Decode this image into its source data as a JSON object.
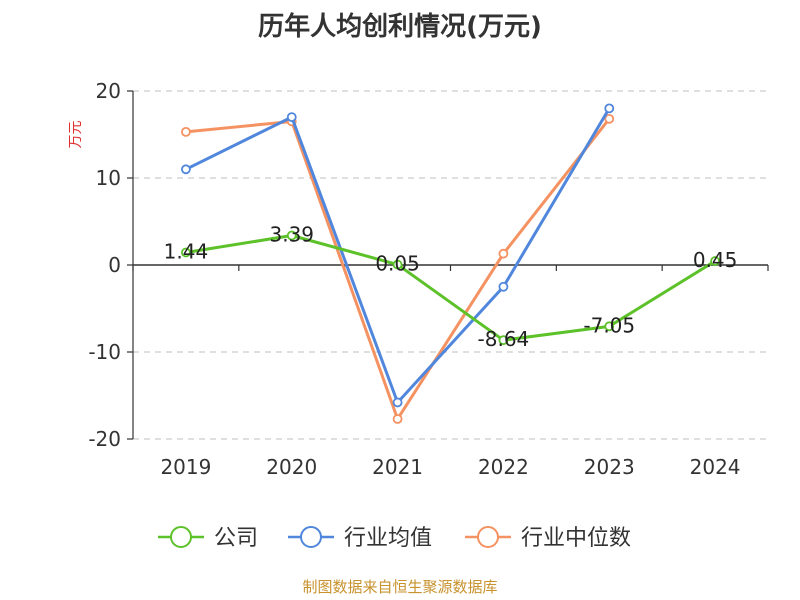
{
  "chart_data": {
    "type": "line",
    "title": "历年人均创利情况(万元)",
    "ylabel": "万元",
    "x": [
      "2019",
      "2020",
      "2021",
      "2022",
      "2023",
      "2024"
    ],
    "ylim": [
      -20,
      20
    ],
    "yticks": [
      20,
      10,
      0,
      -10,
      -20
    ],
    "grid": true,
    "legend_position": "bottom",
    "series": [
      {
        "name": "公司",
        "color": "#5dc22a",
        "values": [
          1.44,
          3.39,
          0.05,
          -8.64,
          -7.05,
          0.45
        ],
        "labels": [
          "1.44",
          "3.39",
          "0.05",
          "-8.64",
          "-7.05",
          "0.45"
        ]
      },
      {
        "name": "行业均值",
        "color": "#5087dc",
        "values": [
          11.0,
          17.0,
          -15.8,
          -2.5,
          18.0,
          null
        ]
      },
      {
        "name": "行业中位数",
        "color": "#f59262",
        "values": [
          15.3,
          16.5,
          -17.7,
          1.3,
          16.8,
          null
        ]
      }
    ]
  },
  "footer": {
    "text": "制图数据来自恒生聚源数据库",
    "color": "#c8922e"
  },
  "colors": {
    "axis": "#333333",
    "grid": "#cccccc",
    "ylabel": "#e03030"
  }
}
